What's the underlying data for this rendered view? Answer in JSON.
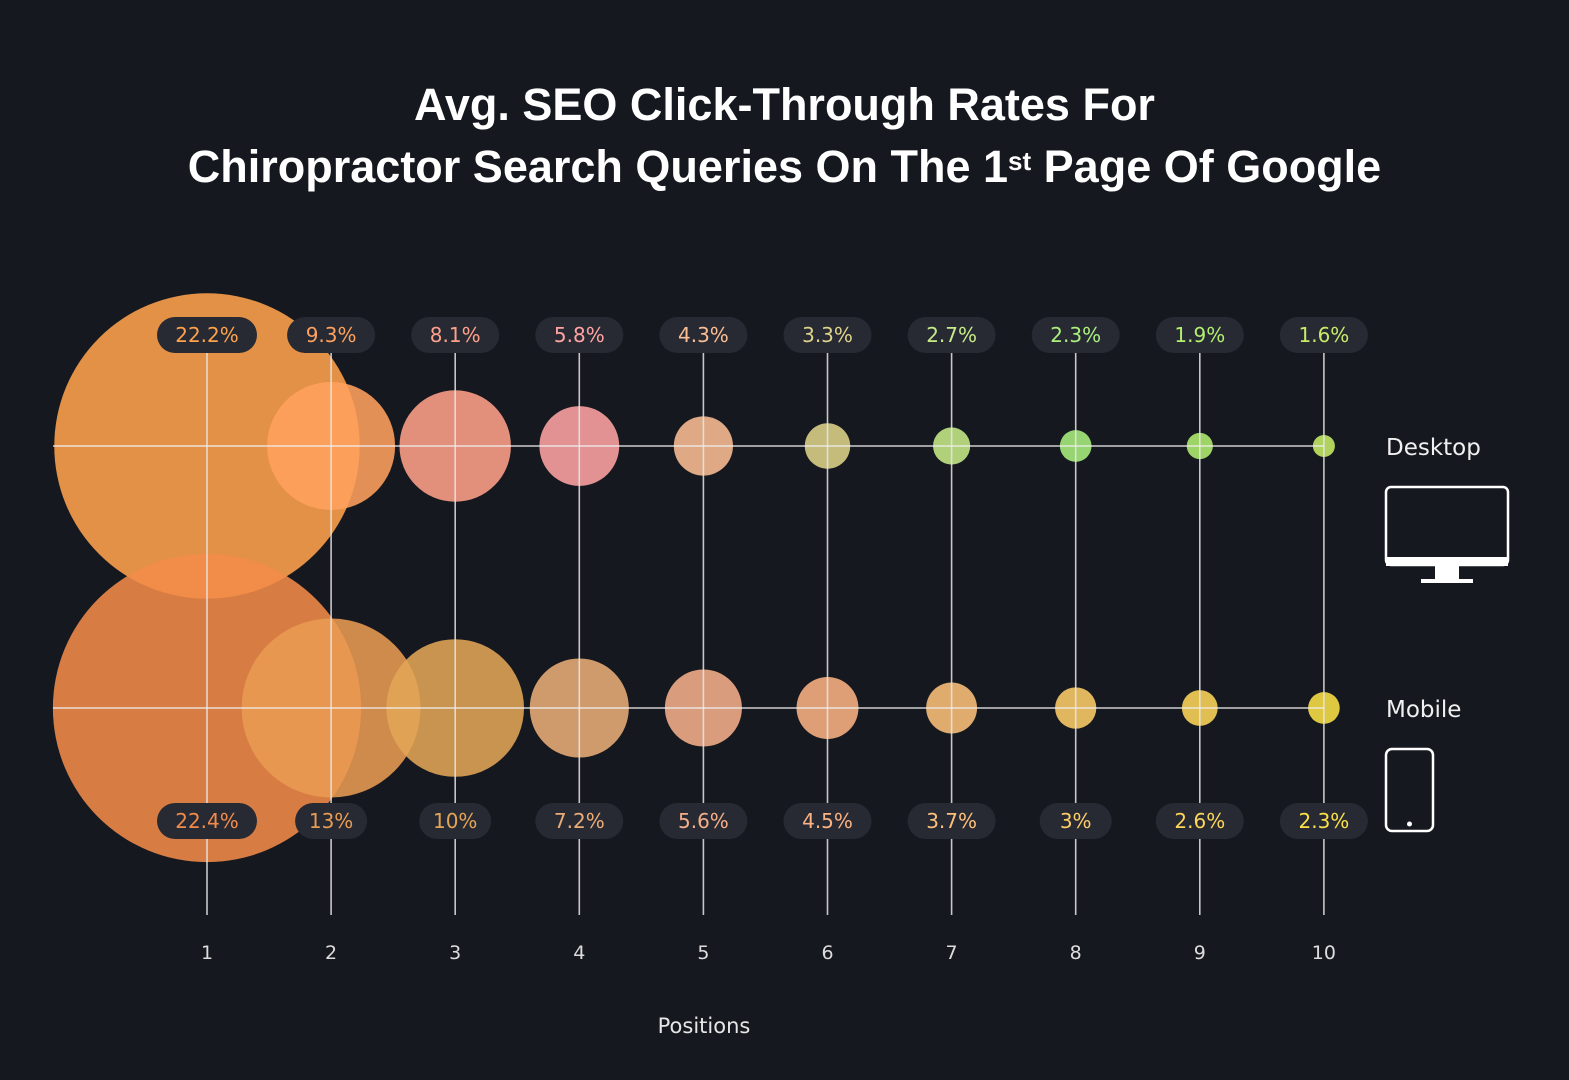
{
  "title_line1": "Avg. SEO Click-Through Rates For",
  "title_line2_pre": "Chiropractor Search Queries On The 1",
  "title_line2_sup": "st",
  "title_line2_post": " Page Of Google",
  "chart_data": {
    "type": "bubble",
    "xlabel": "Positions",
    "categories": [
      "1",
      "2",
      "3",
      "4",
      "5",
      "6",
      "7",
      "8",
      "9",
      "10"
    ],
    "series": [
      {
        "name": "Desktop",
        "icon": "desktop-monitor-icon",
        "values": [
          22.2,
          9.3,
          8.1,
          5.8,
          4.3,
          3.3,
          2.7,
          2.3,
          1.9,
          1.6
        ],
        "labels": [
          "22.2%",
          "9.3%",
          "8.1%",
          "5.8%",
          "4.3%",
          "3.3%",
          "2.7%",
          "2.3%",
          "1.9%",
          "1.6%"
        ],
        "colors": [
          "#ffa24c",
          "#ffa15e",
          "#ffa08a",
          "#ffa3a3",
          "#fbbd93",
          "#ded38a",
          "#c6ea88",
          "#aaef7e",
          "#b2ee70",
          "#c8ec68"
        ]
      },
      {
        "name": "Mobile",
        "icon": "mobile-phone-icon",
        "values": [
          22.4,
          13,
          10,
          7.2,
          5.6,
          4.5,
          3.7,
          3,
          2.6,
          2.3
        ],
        "labels": [
          "22.4%",
          "13%",
          "10%",
          "7.2%",
          "5.6%",
          "4.5%",
          "3.7%",
          "3%",
          "2.6%",
          "2.3%"
        ],
        "colors": [
          "#f28b4a",
          "#e99b52",
          "#e3a556",
          "#ebad78",
          "#f5ae8a",
          "#fbb283",
          "#fdc07a",
          "#fdcd68",
          "#fdd55a",
          "#fbe048"
        ]
      }
    ],
    "background": "#16181f",
    "label_pill_color": "#272a33"
  }
}
